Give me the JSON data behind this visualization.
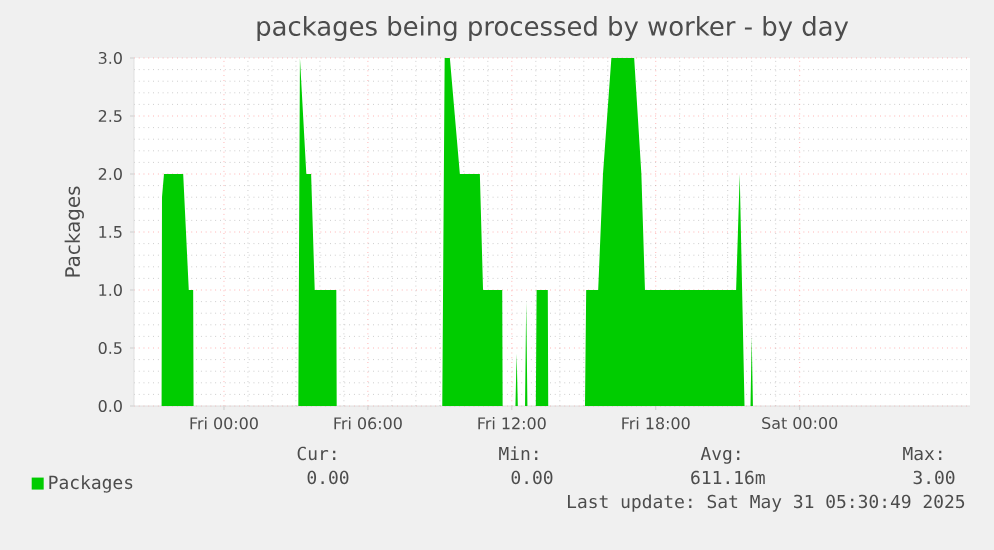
{
  "chart_data": {
    "type": "area",
    "title": "packages being processed by worker - by day",
    "ylabel": "Packages",
    "xlim": [
      "2025-05-29T20:15",
      "2025-05-31T07:06"
    ],
    "ylim": [
      0,
      3
    ],
    "xticks": [
      {
        "value": "2025-05-30T00:00",
        "label": "Fri 00:00"
      },
      {
        "value": "2025-05-30T06:00",
        "label": "Fri 06:00"
      },
      {
        "value": "2025-05-30T12:00",
        "label": "Fri 12:00"
      },
      {
        "value": "2025-05-30T18:00",
        "label": "Fri 18:00"
      },
      {
        "value": "2025-05-31T00:00",
        "label": "Sat 00:00"
      }
    ],
    "yticks": [
      {
        "value": 0,
        "label": "0.0"
      },
      {
        "value": 0.5,
        "label": "0.5"
      },
      {
        "value": 1,
        "label": "1.0"
      },
      {
        "value": 1.5,
        "label": "1.5"
      },
      {
        "value": 2,
        "label": "2.0"
      },
      {
        "value": 2.5,
        "label": "2.5"
      },
      {
        "value": 3,
        "label": "3.0"
      }
    ],
    "grid": true,
    "legend": "bottom",
    "series": [
      {
        "name": "Packages",
        "color": "#00cc00",
        "x": [
          "2025-05-29T21:24",
          "2025-05-29T21:25",
          "2025-05-29T21:30",
          "2025-05-29T22:18",
          "2025-05-29T22:32",
          "2025-05-29T22:43",
          "2025-05-29T22:44",
          "2025-05-30T03:06",
          "2025-05-30T03:10",
          "2025-05-30T03:26",
          "2025-05-30T03:38",
          "2025-05-30T03:47",
          "2025-05-30T04:41",
          "2025-05-30T04:42",
          "2025-05-30T09:06",
          "2025-05-30T09:12",
          "2025-05-30T09:25",
          "2025-05-30T09:50",
          "2025-05-30T10:40",
          "2025-05-30T10:48",
          "2025-05-30T11:36",
          "2025-05-30T11:37",
          "2025-05-30T12:09",
          "2025-05-30T12:12",
          "2025-05-30T12:15",
          "2025-05-30T12:33",
          "2025-05-30T12:36",
          "2025-05-30T12:39",
          "2025-05-30T13:00",
          "2025-05-30T13:02",
          "2025-05-30T13:30",
          "2025-05-30T13:31",
          "2025-05-30T15:03",
          "2025-05-30T15:06",
          "2025-05-30T15:36",
          "2025-05-30T15:48",
          "2025-05-30T16:09",
          "2025-05-30T17:06",
          "2025-05-30T17:24",
          "2025-05-30T17:33",
          "2025-05-30T21:21",
          "2025-05-30T21:30",
          "2025-05-30T21:42",
          "2025-05-30T21:57",
          "2025-05-30T22:00",
          "2025-05-30T22:03"
        ],
        "values": [
          0,
          1.8,
          2,
          2,
          1,
          1,
          0,
          0,
          3,
          2,
          2,
          1,
          1,
          0,
          0,
          3,
          3,
          2,
          2,
          1,
          1,
          0,
          0,
          0.45,
          0,
          0,
          0.9,
          0,
          0,
          1,
          1,
          0,
          0,
          1,
          1,
          2,
          3,
          3,
          2,
          1,
          1,
          2,
          0,
          0,
          0.6,
          0
        ]
      }
    ],
    "annotations": [
      "Cur:",
      "Min:",
      "Avg:",
      "Max:",
      "0.00",
      "0.00",
      "611.16m",
      "3.00",
      "Last update: Sat May 31 05:30:49 2025"
    ]
  }
}
